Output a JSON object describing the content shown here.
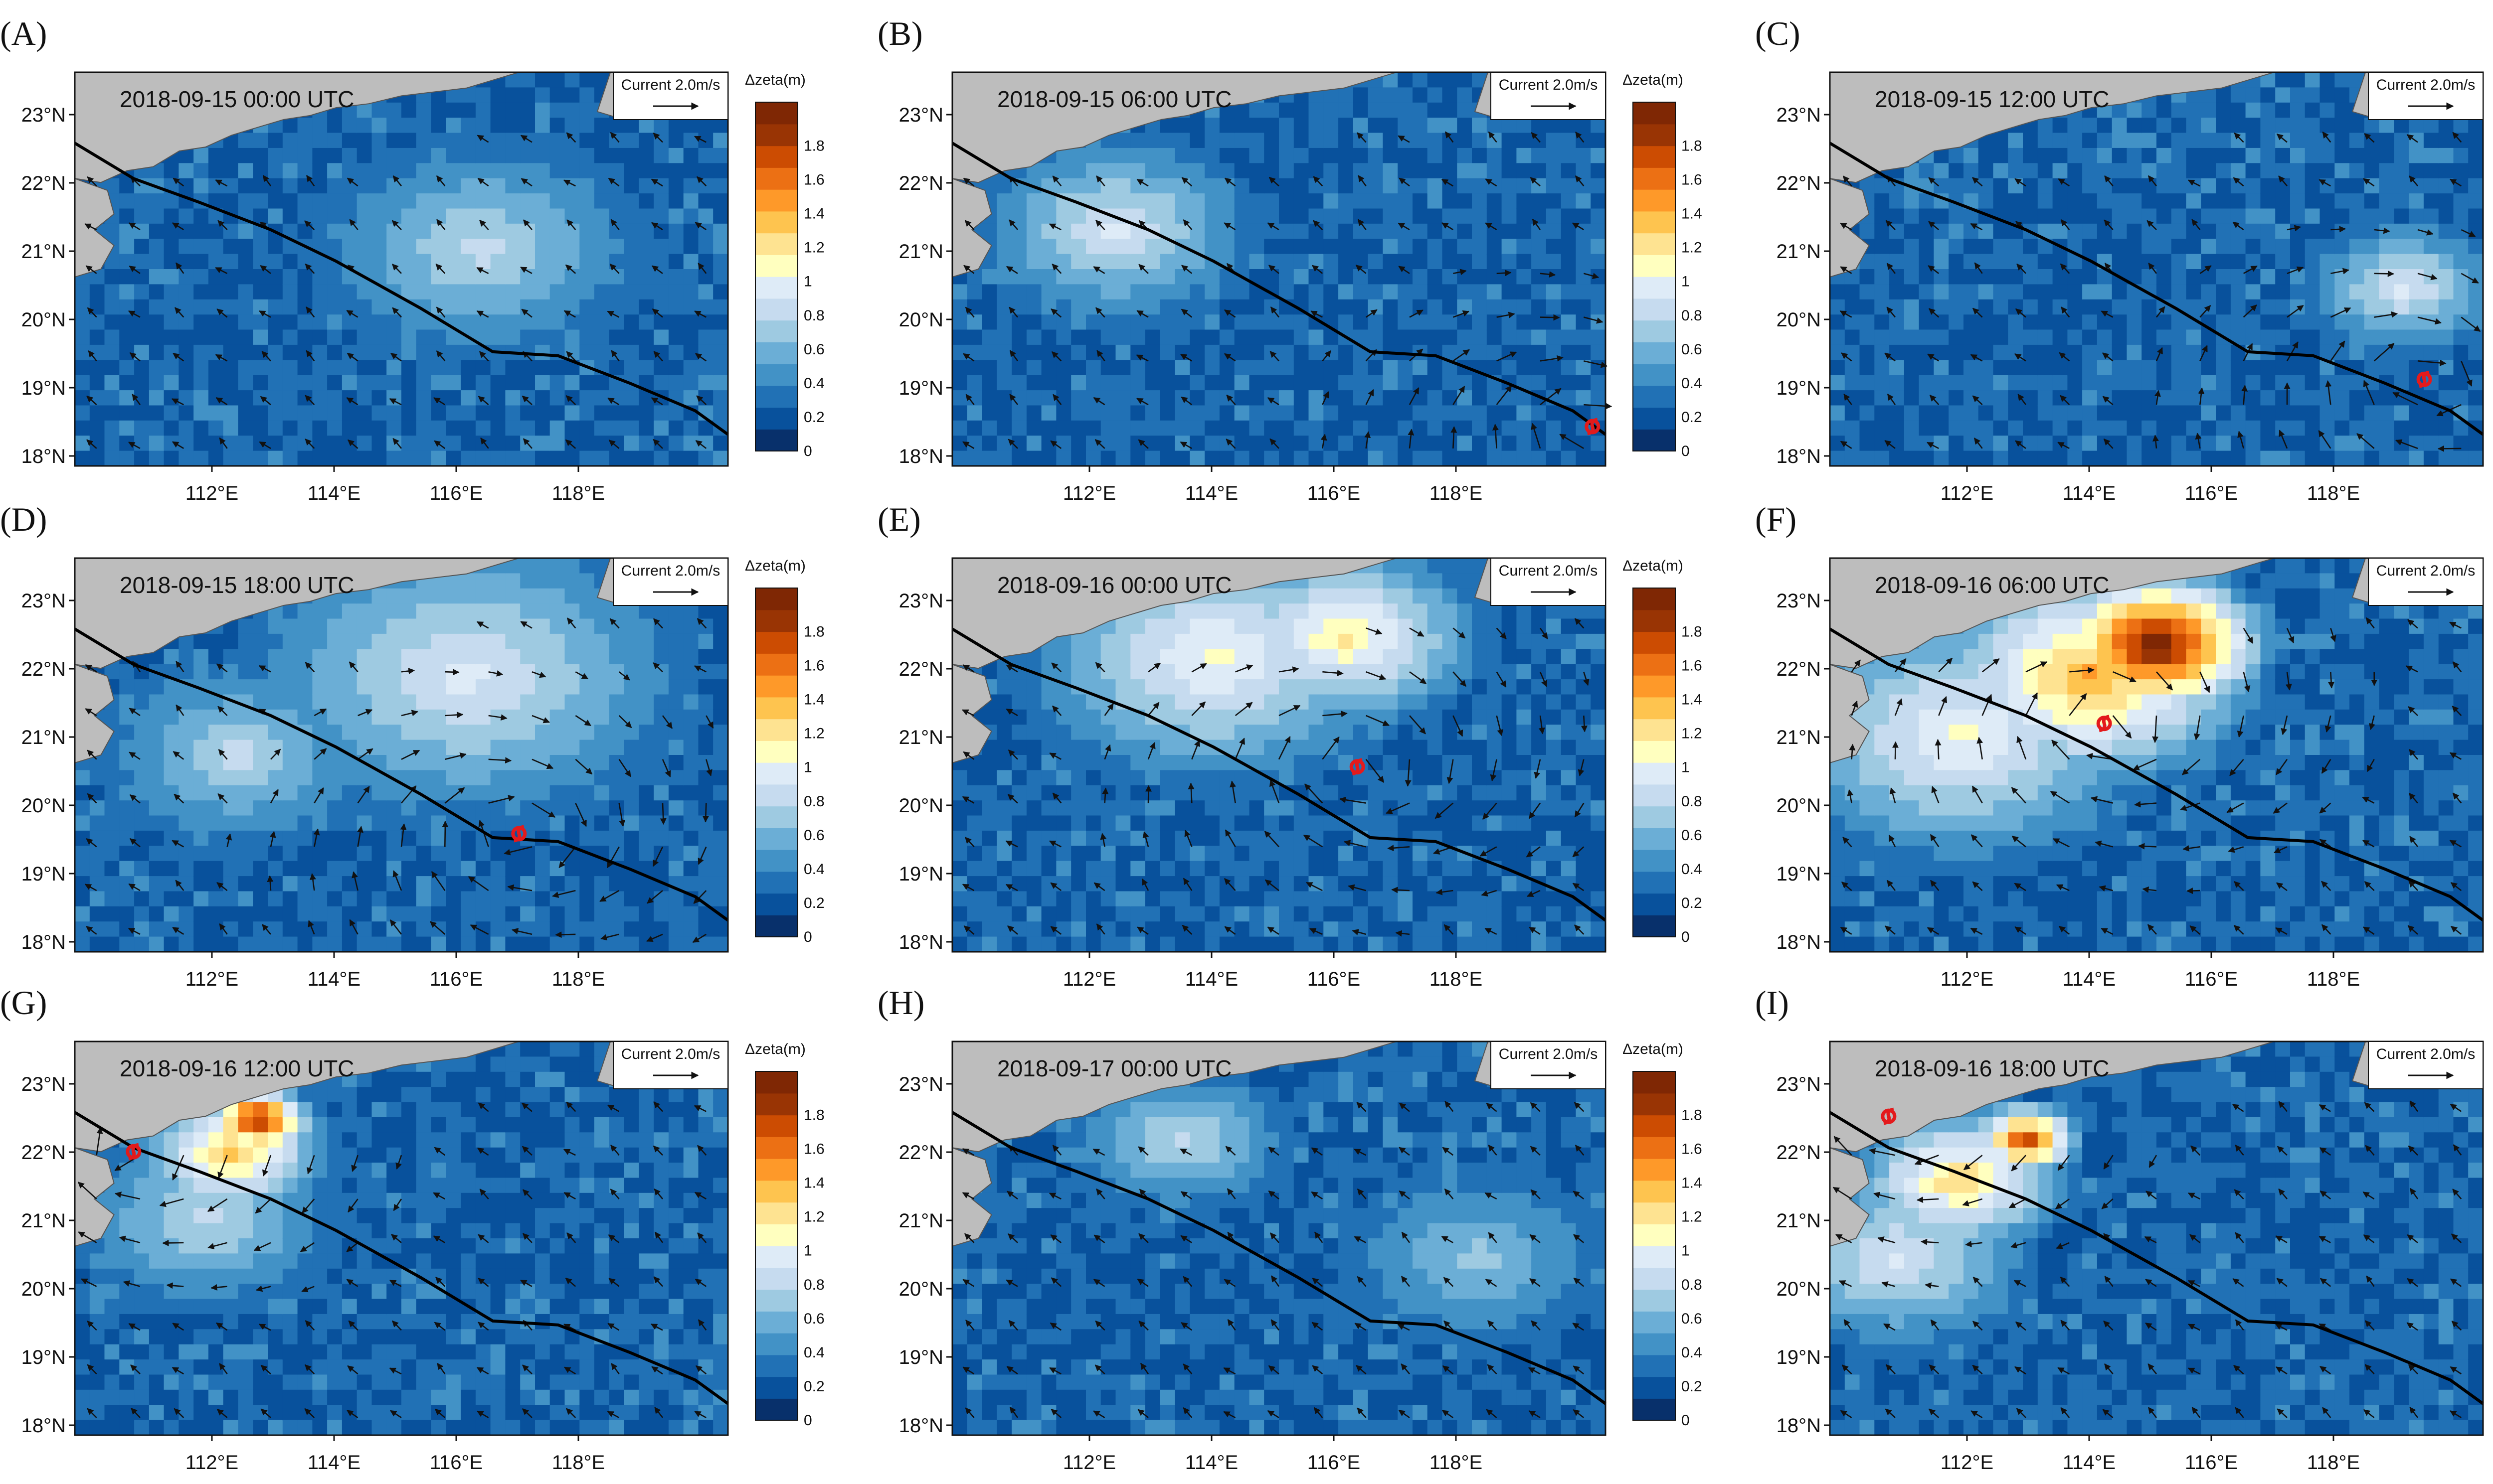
{
  "figure": {
    "colorbar": {
      "title": "Δzeta(m)",
      "tick_labels": [
        "1.8",
        "1.6",
        "1.4",
        "1.2",
        "1",
        "0.8",
        "0.6",
        "0.4",
        "0.2",
        "0"
      ],
      "colors": [
        "#08306b",
        "#08519c",
        "#2171b5",
        "#4292c6",
        "#6baed6",
        "#9ecae1",
        "#c6dbef",
        "#deebf7",
        "#ffffbf",
        "#fee391",
        "#fec44f",
        "#fe9929",
        "#ec7014",
        "#cc4c02",
        "#993404",
        "#7f2704"
      ]
    },
    "legend": {
      "reference_vector_label": "Current 2.0m/s"
    },
    "axes": {
      "lat_labels": [
        "23°N",
        "22°N",
        "21°N",
        "20°N",
        "19°N",
        "18°N"
      ],
      "lon_labels": [
        "112°E",
        "114°E",
        "116°E",
        "118°E"
      ]
    },
    "colors": {
      "land": "#bdbdbd",
      "track": "#000000",
      "typhoon_marker": "#e31a1c"
    },
    "panels": [
      {
        "label": "(A)",
        "time": "2018-09-15 00:00 UTC"
      },
      {
        "label": "(B)",
        "time": "2018-09-15 06:00 UTC"
      },
      {
        "label": "(C)",
        "time": "2018-09-15 12:00 UTC"
      },
      {
        "label": "(D)",
        "time": "2018-09-15 18:00 UTC"
      },
      {
        "label": "(E)",
        "time": "2018-09-16 00:00 UTC"
      },
      {
        "label": "(F)",
        "time": "2018-09-16 06:00 UTC"
      },
      {
        "label": "(G)",
        "time": "2018-09-16 12:00 UTC"
      },
      {
        "label": "(H)",
        "time": "2018-09-17 00:00 UTC"
      },
      {
        "label": "(I)",
        "time": "2018-09-16 18:00 UTC"
      }
    ]
  }
}
